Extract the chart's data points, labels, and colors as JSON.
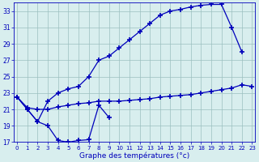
{
  "xlabel": "Graphe des températures (°c)",
  "bg_color": "#d8eeee",
  "grid_color": "#9bbfbf",
  "line_color": "#0000bb",
  "ylim": [
    17,
    34
  ],
  "xlim": [
    0,
    23
  ],
  "yticks": [
    17,
    19,
    21,
    23,
    25,
    27,
    29,
    31,
    33
  ],
  "xticks": [
    0,
    1,
    2,
    3,
    4,
    5,
    6,
    7,
    8,
    9,
    10,
    11,
    12,
    13,
    14,
    15,
    16,
    17,
    18,
    19,
    20,
    21,
    22,
    23
  ],
  "line1_x": [
    0,
    1,
    2,
    3,
    4,
    5,
    6,
    7,
    8,
    9
  ],
  "line1_y": [
    22.5,
    21.0,
    19.5,
    19.0,
    17.2,
    17.0,
    17.2,
    17.3,
    21.5,
    20.0
  ],
  "line2_x": [
    0,
    1,
    2,
    3,
    4,
    5,
    6,
    7,
    8,
    9,
    10,
    11,
    12,
    13,
    14,
    15,
    16,
    17,
    18,
    19,
    20,
    21,
    22
  ],
  "line2_y": [
    22.5,
    21.0,
    19.5,
    22.0,
    23.0,
    23.5,
    23.8,
    25.0,
    27.0,
    27.5,
    28.5,
    29.5,
    30.5,
    31.5,
    32.5,
    33.0,
    33.2,
    33.5,
    33.7,
    33.8,
    33.8,
    31.0,
    28.0
  ],
  "line3_x": [
    0,
    1,
    2,
    3,
    4,
    5,
    6,
    7,
    8,
    9,
    10,
    11,
    12,
    13,
    14,
    15,
    16,
    17,
    18,
    19,
    20,
    21,
    22,
    23
  ],
  "line3_y": [
    22.5,
    21.2,
    21.0,
    21.0,
    21.3,
    21.5,
    21.7,
    21.8,
    22.0,
    22.0,
    22.0,
    22.1,
    22.2,
    22.3,
    22.5,
    22.6,
    22.7,
    22.8,
    23.0,
    23.2,
    23.4,
    23.6,
    24.0,
    23.8
  ]
}
